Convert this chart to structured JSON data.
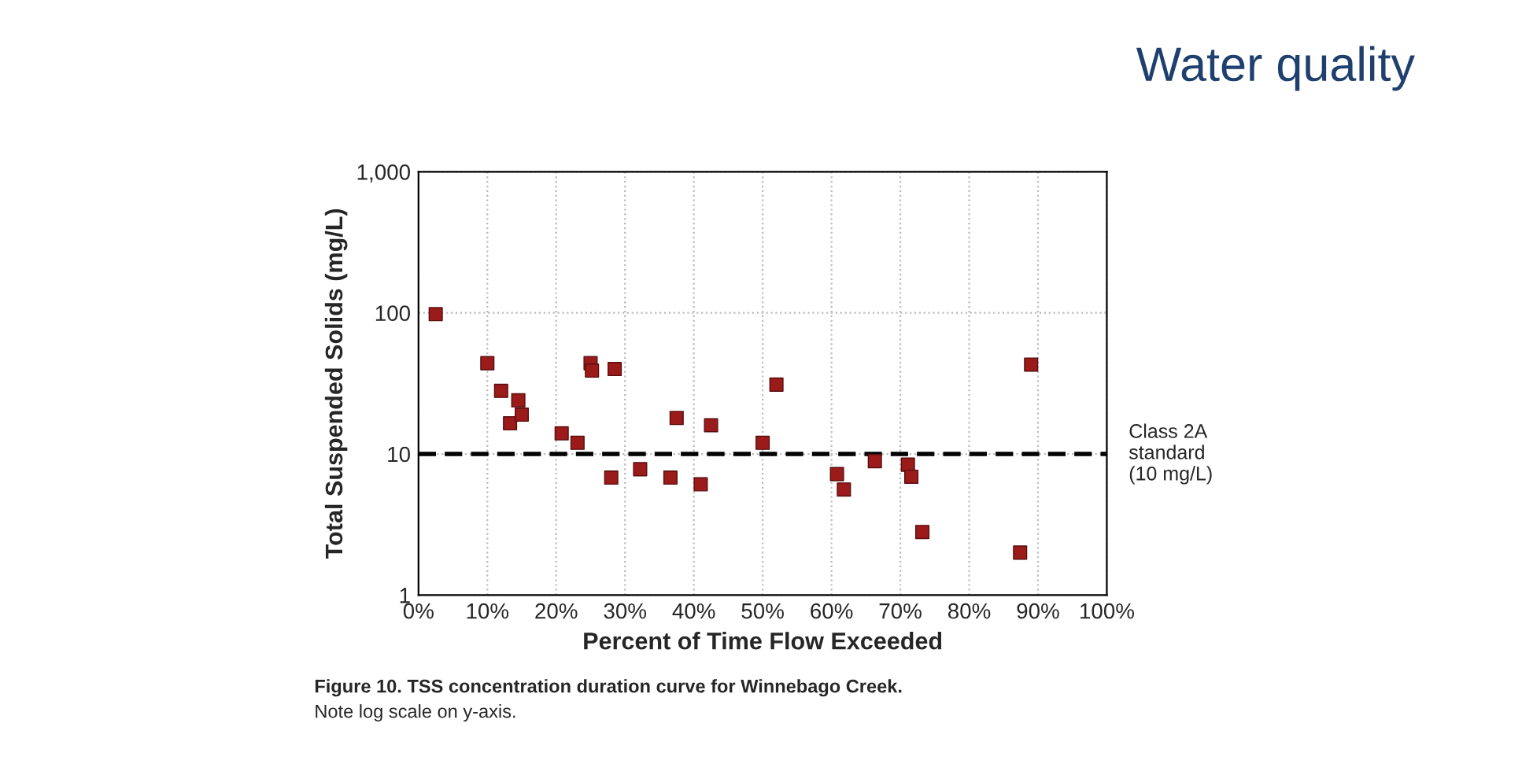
{
  "chart_data": {
    "type": "scatter",
    "title": "Water quality",
    "xlabel": "Percent of Time Flow Exceeded",
    "ylabel": "Total Suspended Solids (mg/L)",
    "x": [
      2.5,
      10,
      12,
      13.3,
      14.5,
      15,
      20.8,
      23.1,
      25,
      25.2,
      28,
      28.5,
      32.2,
      36.6,
      37.5,
      41,
      42.5,
      50,
      52,
      60.8,
      61.8,
      66.3,
      71.1,
      71.6,
      73.2,
      87.4,
      89
    ],
    "series": [
      {
        "color": "#9b1b1b",
        "values": [
          98,
          44,
          28,
          16.5,
          24,
          19,
          14,
          12,
          44,
          39,
          6.8,
          40,
          7.8,
          6.8,
          18,
          6.1,
          16,
          12,
          31,
          7.2,
          5.6,
          8.9,
          8.4,
          6.9,
          2.8,
          2.0,
          43
        ]
      }
    ],
    "xlim": [
      0,
      100
    ],
    "xticks": [
      {
        "value": 0,
        "label": "0%"
      },
      {
        "value": 10,
        "label": "10%"
      },
      {
        "value": 20,
        "label": "20%"
      },
      {
        "value": 30,
        "label": "30%"
      },
      {
        "value": 40,
        "label": "40%"
      },
      {
        "value": 50,
        "label": "50%"
      },
      {
        "value": 60,
        "label": "60%"
      },
      {
        "value": 70,
        "label": "70%"
      },
      {
        "value": 80,
        "label": "80%"
      },
      {
        "value": 90,
        "label": "90%"
      },
      {
        "value": 100,
        "label": "100%"
      }
    ],
    "ylim": [
      1,
      1000
    ],
    "yticks": [
      1,
      10,
      100,
      {
        "value": 1000,
        "label": "1,000"
      }
    ],
    "log": "y",
    "grid": true,
    "marker": "square",
    "ref_lines": [
      {
        "axis": "y",
        "value": 10,
        "label": "Class 2A\nstandard\n(10 mg/L)",
        "color": "#000000",
        "line_style": "dashed"
      }
    ],
    "annotations": [
      "Figure 10. TSS concentration duration curve for Winnebago Creek.",
      "Note log scale on y-axis."
    ]
  }
}
